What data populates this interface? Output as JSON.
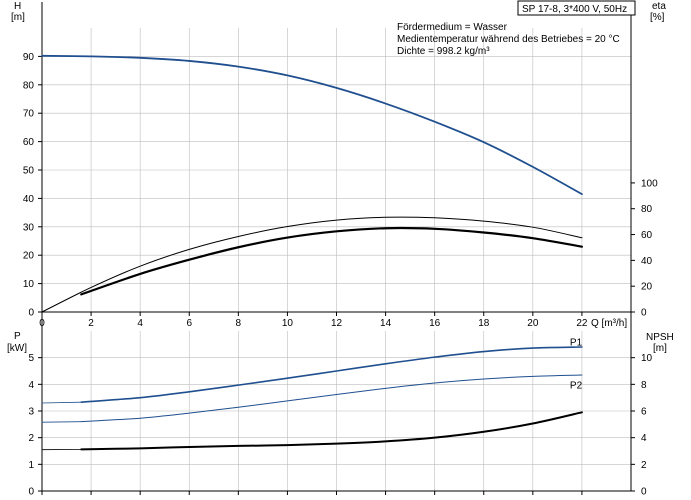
{
  "title_box": "SP 17-8, 3*400 V, 50Hz",
  "info_lines": [
    "Fördermedium = Wasser",
    "Medientemperatur während des Betriebes = 20 °C",
    "Dichte = 998.2 kg/m³"
  ],
  "colors": {
    "blue": "#1f4f8f",
    "black": "#000000",
    "grid": "#bdbdbd"
  },
  "chart_data": [
    {
      "type": "line",
      "name": "top-chart",
      "xlabel": "Q [m³/h]",
      "ylabel_left": "H\n[m]",
      "ylabel_right": "eta\n[%]",
      "xlim": [
        0,
        24
      ],
      "ylim_left": [
        0,
        100
      ],
      "ylim_right": [
        0,
        220
      ],
      "x_ticks": [
        0,
        2,
        4,
        6,
        8,
        10,
        12,
        14,
        16,
        18,
        20,
        22
      ],
      "y_ticks_left": [
        0,
        10,
        20,
        30,
        40,
        50,
        60,
        70,
        80,
        90
      ],
      "y_ticks_right": [
        0,
        20,
        40,
        60,
        80,
        100
      ],
      "series": [
        {
          "axis": "left",
          "color": "#1f4f8f",
          "width": 1.8,
          "x": [
            0,
            2,
            4,
            6,
            8,
            10,
            12,
            14,
            16,
            18,
            20,
            22
          ],
          "y": [
            90.2,
            90,
            89.5,
            88.4,
            86.4,
            83.3,
            78.9,
            73.4,
            67,
            59.8,
            51.1,
            41.5
          ]
        },
        {
          "axis": "right",
          "color": "#000000",
          "width": 1.0,
          "x": [
            0,
            2,
            4,
            6,
            8,
            10,
            12,
            14,
            16,
            18,
            20,
            22
          ],
          "y": [
            0,
            19,
            35.5,
            48.5,
            58.5,
            66.2,
            71.2,
            73.4,
            73,
            70.4,
            65.7,
            57.5
          ]
        },
        {
          "axis": "left",
          "color": "#000000",
          "width": 2.2,
          "x": [
            1.6,
            4,
            6,
            8,
            10,
            12,
            14,
            16,
            18,
            20,
            22
          ],
          "y": [
            6.2,
            13.4,
            18.4,
            22.8,
            26.2,
            28.4,
            29.5,
            29.3,
            28,
            26,
            23
          ]
        },
        {
          "axis": "left",
          "color": "#000000",
          "width": 0.8,
          "x": [
            0,
            1.6
          ],
          "y": [
            0,
            7
          ]
        }
      ]
    },
    {
      "type": "line",
      "name": "bottom-chart",
      "xlabel": "",
      "ylabel_left": "P\n[kW]",
      "ylabel_right": "NPSH\n[m]",
      "xlim": [
        0,
        24
      ],
      "ylim_left": [
        0,
        6
      ],
      "ylim_right": [
        0,
        12
      ],
      "y_ticks_left": [
        0,
        1,
        2,
        3,
        4,
        5
      ],
      "y_ticks_right": [
        0,
        2,
        4,
        6,
        8,
        10
      ],
      "series": [
        {
          "axis": "left",
          "name": "P1",
          "color": "#1f4f8f",
          "width": 1.6,
          "x": [
            1.6,
            4,
            6,
            8,
            10,
            12,
            14,
            16,
            18,
            20,
            22
          ],
          "y": [
            3.33,
            3.5,
            3.72,
            3.97,
            4.23,
            4.5,
            4.77,
            5.02,
            5.23,
            5.36,
            5.4
          ]
        },
        {
          "axis": "left",
          "color": "#1f4f8f",
          "width": 0.8,
          "x": [
            0,
            1.6
          ],
          "y": [
            3.3,
            3.33
          ]
        },
        {
          "axis": "left",
          "name": "P2",
          "color": "#1f4f8f",
          "width": 1.0,
          "x": [
            1.6,
            4,
            6,
            8,
            10,
            12,
            14,
            16,
            18,
            20,
            22
          ],
          "y": [
            2.6,
            2.73,
            2.92,
            3.14,
            3.38,
            3.62,
            3.85,
            4.05,
            4.2,
            4.3,
            4.35
          ]
        },
        {
          "axis": "left",
          "color": "#1f4f8f",
          "width": 0.8,
          "x": [
            0,
            1.6
          ],
          "y": [
            2.58,
            2.6
          ]
        },
        {
          "axis": "right",
          "color": "#000000",
          "width": 2.0,
          "x": [
            1.6,
            4,
            6,
            8,
            10,
            12,
            14,
            16,
            18,
            20,
            22
          ],
          "y": [
            3.12,
            3.2,
            3.3,
            3.38,
            3.44,
            3.55,
            3.72,
            4,
            4.44,
            5.06,
            5.9
          ]
        },
        {
          "axis": "right",
          "color": "#000000",
          "width": 0.8,
          "x": [
            0,
            1.6
          ],
          "y": [
            3.1,
            3.12
          ]
        }
      ],
      "series_labels": [
        {
          "text": "P1",
          "x": 22,
          "y": 5.57
        },
        {
          "text": "P2",
          "x": 22,
          "y": 3.95
        }
      ]
    }
  ]
}
